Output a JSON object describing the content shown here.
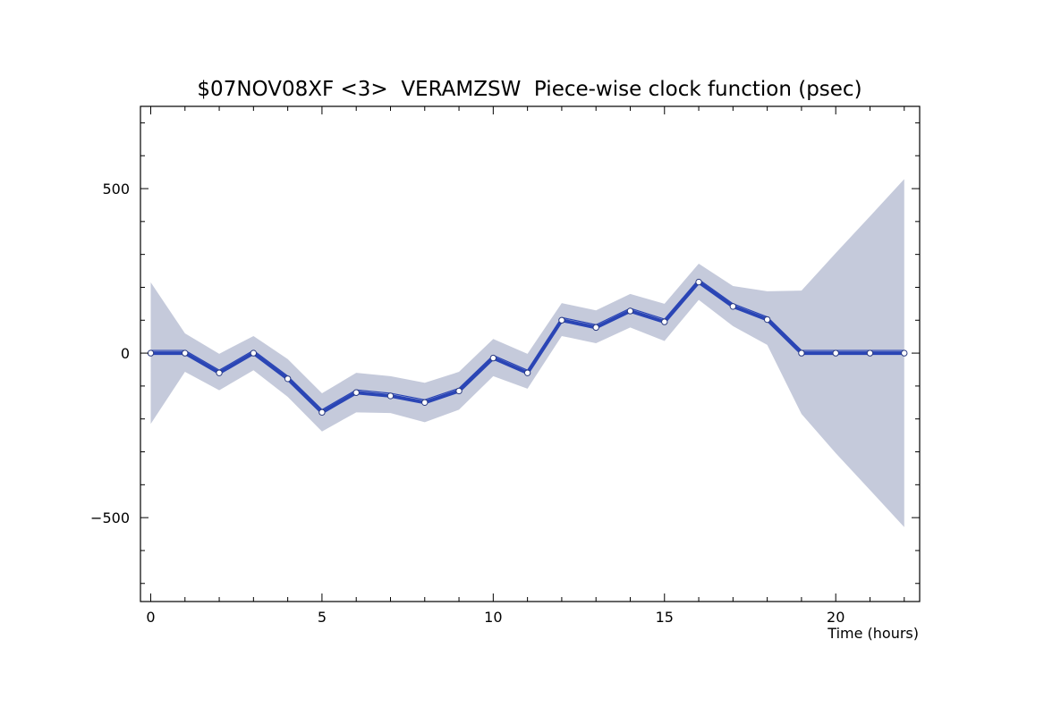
{
  "chart_data": {
    "type": "line",
    "title": "$07NOV08XF <3>  VERAMZSW  Piece-wise clock function (psec)",
    "xlabel": "Time (hours)",
    "ylabel": "",
    "xlim": [
      -0.3,
      22.45
    ],
    "ylim": [
      -755,
      750
    ],
    "xticks": [
      0,
      5,
      10,
      15,
      20
    ],
    "xtick_labels": [
      "0",
      "5",
      "10",
      "15",
      "20"
    ],
    "yticks": [
      -500,
      0,
      500
    ],
    "ytick_labels": [
      "−500",
      "0",
      "500"
    ],
    "x_minor_step": 1,
    "y_minor_step": 100,
    "grid": false,
    "colors": {
      "line": "#2a45b5",
      "band": "#c5cadb",
      "marker_fill": "#ffffff"
    },
    "series": [
      {
        "x": [
          0,
          1,
          2,
          3,
          4,
          5,
          6,
          7,
          8,
          9,
          10,
          11,
          12,
          13,
          14,
          15,
          16,
          17,
          18,
          19,
          20,
          21,
          22
        ],
        "values": [
          0,
          0,
          -60,
          0,
          -78,
          -180,
          -120,
          -130,
          -150,
          -115,
          -15,
          -60,
          100,
          78,
          128,
          95,
          216,
          142,
          102,
          0,
          0,
          0,
          0
        ],
        "upper": [
          215,
          60,
          -2,
          52,
          -18,
          -122,
          -60,
          -70,
          -90,
          -57,
          43,
          -2,
          152,
          130,
          180,
          150,
          272,
          204,
          188,
          190,
          304,
          416,
          529
        ],
        "lower": [
          -215,
          -57,
          -113,
          -52,
          -133,
          -238,
          -180,
          -182,
          -210,
          -172,
          -70,
          -108,
          52,
          30,
          78,
          37,
          162,
          82,
          25,
          -185,
          -304,
          -416,
          -529
        ]
      }
    ]
  }
}
